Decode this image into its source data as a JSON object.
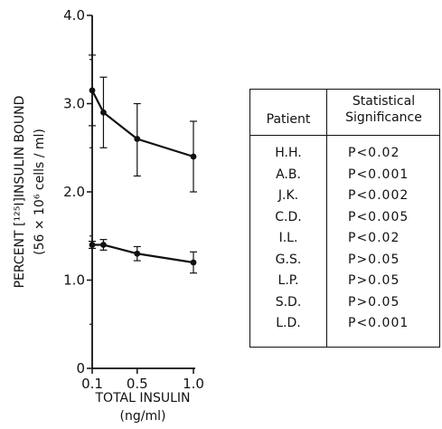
{
  "chart_data": {
    "type": "line",
    "ylabel_lines": [
      "PERCENT [¹²⁵I]INSULIN BOUND",
      "(56 × 10⁶ cells / ml)"
    ],
    "xlabel_lines": [
      "TOTAL INSULIN",
      "(ng/ml)"
    ],
    "xlim": [
      0.1,
      1.0
    ],
    "ylim": [
      0,
      4.0
    ],
    "x_ticks": [
      {
        "value": 0.1,
        "label": "0.1"
      },
      {
        "value": 0.5,
        "label": "0.5"
      },
      {
        "value": 1.0,
        "label": "1.0"
      }
    ],
    "y_ticks": [
      {
        "value": 0,
        "label": "0"
      },
      {
        "value": 1.0,
        "label": "1.0"
      },
      {
        "value": 2.0,
        "label": "2.0"
      },
      {
        "value": 3.0,
        "label": "3.0"
      },
      {
        "value": 4.0,
        "label": "4.0"
      }
    ],
    "series": [
      {
        "x": [
          0.1,
          0.2,
          0.5,
          1.0
        ],
        "y": [
          3.15,
          2.9,
          2.6,
          2.4
        ],
        "err_low": [
          2.75,
          2.5,
          2.18,
          2.0
        ],
        "err_high": [
          3.55,
          3.3,
          3.0,
          2.8
        ]
      },
      {
        "x": [
          0.1,
          0.2,
          0.5,
          1.0
        ],
        "y": [
          1.4,
          1.4,
          1.3,
          1.2
        ],
        "err_low": [
          1.36,
          1.34,
          1.22,
          1.08
        ],
        "err_high": [
          1.44,
          1.46,
          1.38,
          1.32
        ]
      }
    ]
  },
  "table": {
    "header_patient": "Patient",
    "header_sig_line1": "Statistical",
    "header_sig_line2": "Significance",
    "rows": [
      {
        "patient": "H.H.",
        "p": "P<0.02"
      },
      {
        "patient": "A.B.",
        "p": "P<0.001"
      },
      {
        "patient": "J.K.",
        "p": "P<0.002"
      },
      {
        "patient": "C.D.",
        "p": "P<0.005"
      },
      {
        "patient": "I.L.",
        "p": "P<0.02"
      },
      {
        "patient": "G.S.",
        "p": "P>0.05"
      },
      {
        "patient": "L.P.",
        "p": "P>0.05"
      },
      {
        "patient": "S.D.",
        "p": "P>0.05"
      },
      {
        "patient": "L.D.",
        "p": "P<0.001"
      }
    ]
  }
}
